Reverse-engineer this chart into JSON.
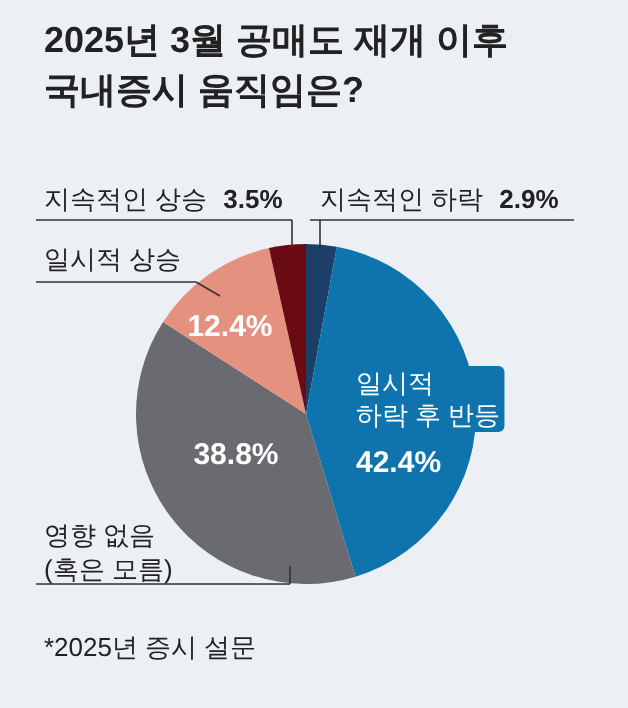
{
  "chart_data": {
    "type": "pie",
    "title": "2025년 3월 공매도 재개 이후\n국내증시 움직임은?",
    "categories": [
      "지속적인 하락",
      "일시적\n하락 후 반등",
      "영향 없음\n(혹은 모름)",
      "일시적 상승",
      "지속적인 상승"
    ],
    "values": [
      2.9,
      42.4,
      38.8,
      12.4,
      3.5
    ],
    "colors": [
      "#1b3f66",
      "#0f74ad",
      "#6a6b70",
      "#e5917f",
      "#6a0a12"
    ],
    "value_labels": [
      "2.9%",
      "42.4%",
      "38.8%",
      "12.4%",
      "3.5%"
    ],
    "annotations": [
      "*2025년 증시 설문"
    ]
  }
}
